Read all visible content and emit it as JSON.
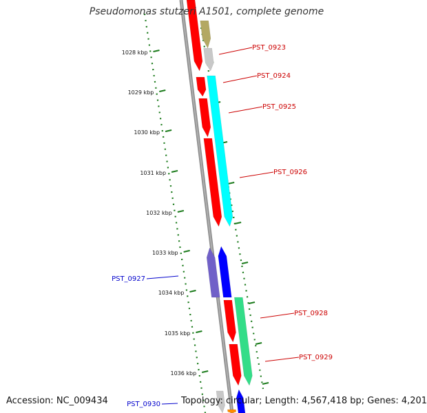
{
  "title": "Pseudomonas stutzeri A1501, complete genome",
  "footer": {
    "accession": "Accession: NC_009434",
    "summary": "Topology: circular; Length: 4,567,418 bp; Genes: 4,201"
  },
  "ticks": [
    "1028 kbp",
    "1029 kbp",
    "1030 kbp",
    "1031 kbp",
    "1032 kbp",
    "1033 kbp",
    "1034 kbp",
    "1035 kbp",
    "1036 kbp"
  ],
  "genes": [
    {
      "name": "PST_0923",
      "color": "#cc0000"
    },
    {
      "name": "PST_0924",
      "color": "#cc0000"
    },
    {
      "name": "PST_0925",
      "color": "#cc0000"
    },
    {
      "name": "PST_0926",
      "color": "#cc0000"
    },
    {
      "name": "PST_0927",
      "color": "#0000cc"
    },
    {
      "name": "PST_0928",
      "color": "#cc0000"
    },
    {
      "name": "PST_0929",
      "color": "#cc0000"
    },
    {
      "name": "PST_0930",
      "color": "#0000cc"
    }
  ],
  "colors": {
    "backbone": "#8c8c8c",
    "tick_dots": "#1a7a1a",
    "cds": "#ff0000",
    "cyan": "#00ffff",
    "khaki": "#b3a863",
    "slate": "#7060c8",
    "blue": "#0000ff",
    "spring": "#33dd88",
    "gray": "#c8c8c8",
    "orange": "#ff8c00"
  }
}
